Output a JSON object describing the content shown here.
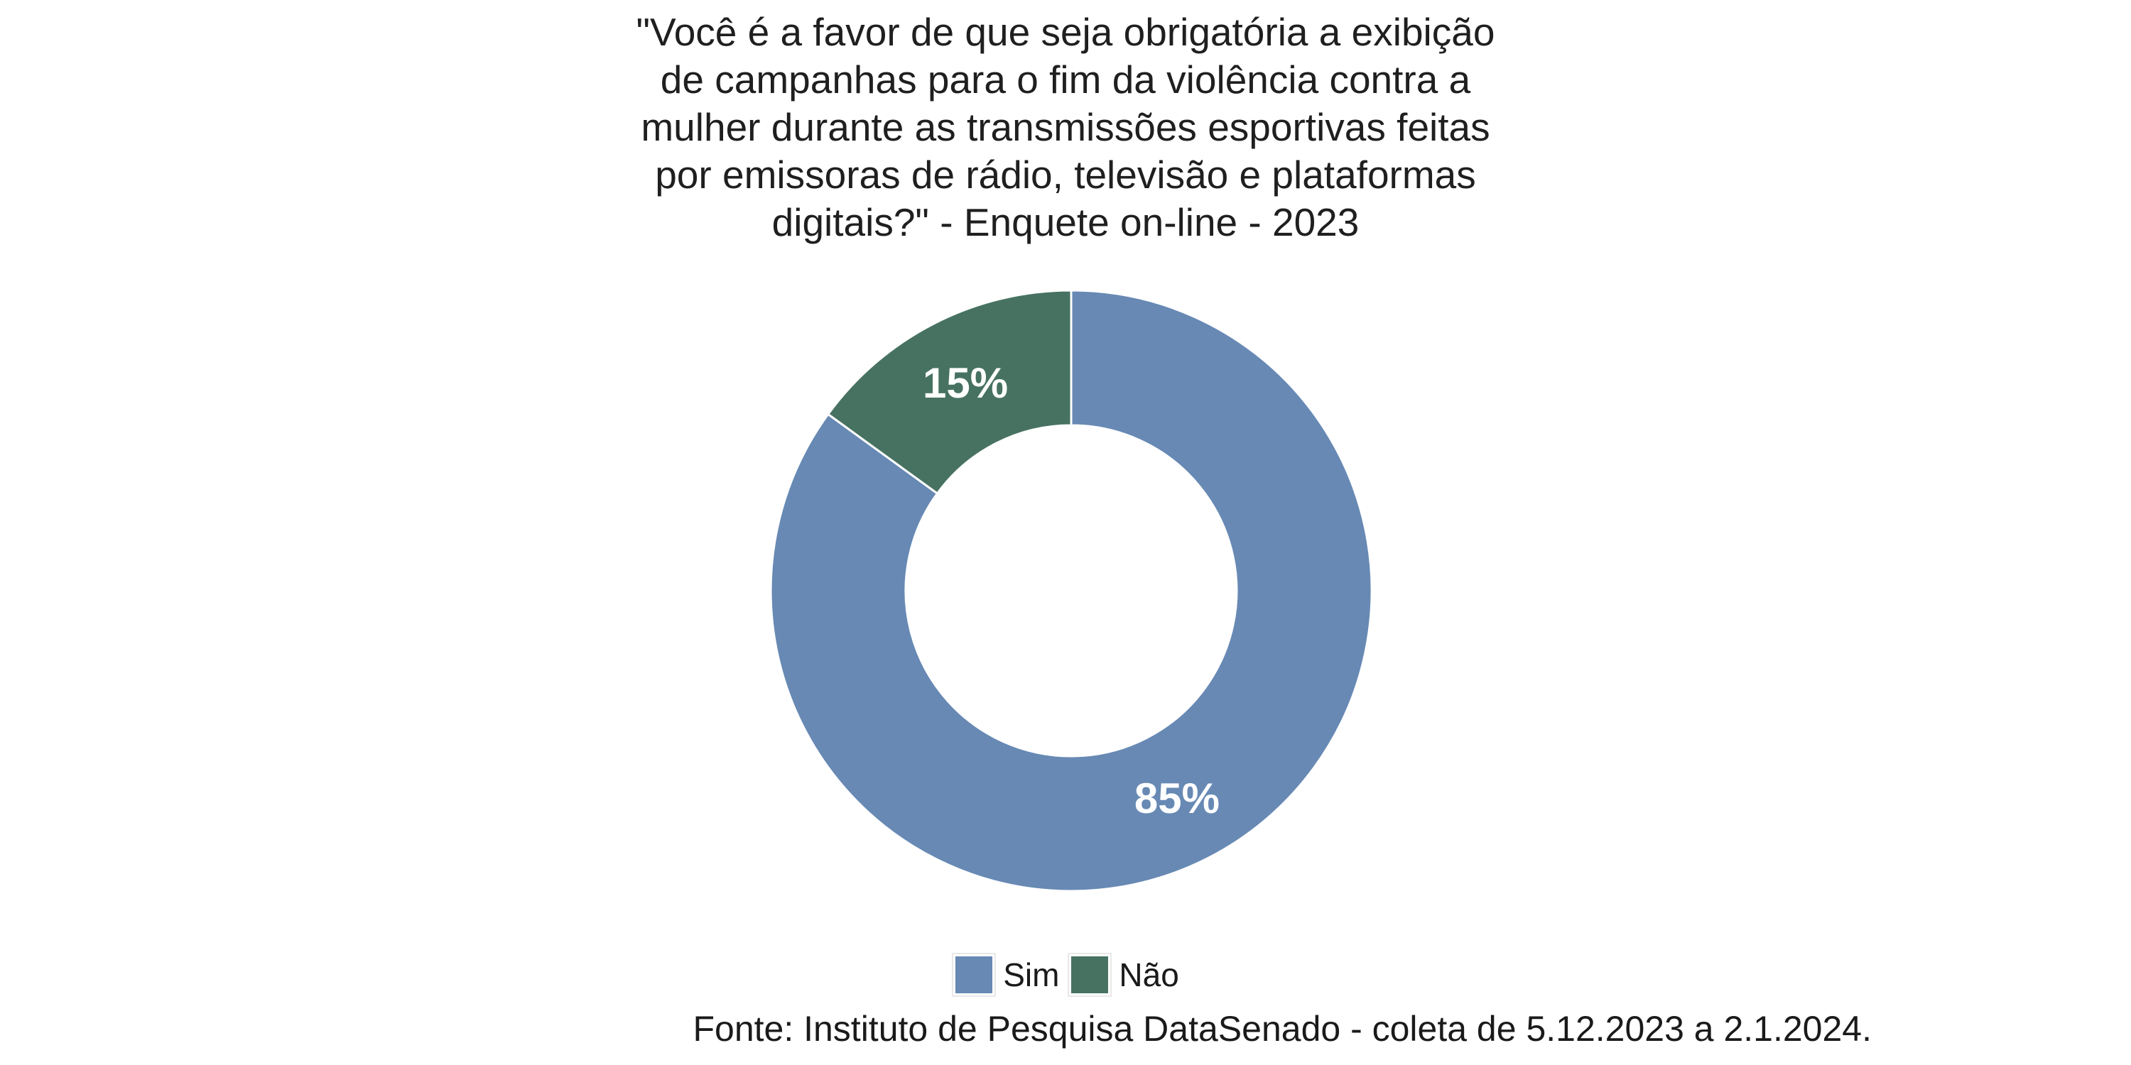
{
  "page": {
    "background": "#ffffff"
  },
  "title": {
    "full": "\"Você é a favor de que seja obrigatória a exibição de campanhas para o fim da violência contra a mulher durante as transmissões esportivas feitas por emissoras de rádio, televisão e plataformas digitais?\" - Enquete on-line - 2023",
    "lines": [
      "\"Você é a favor de que seja obrigatória a exibição",
      "de campanhas para o fim da violência contra a",
      "mulher durante as transmissões esportivas feitas",
      "por emissoras de rádio, televisão e plataformas",
      "digitais?\" - Enquete on-line - 2023"
    ]
  },
  "chart_data": {
    "type": "pie",
    "subtype": "donut",
    "title": "\"Você é a favor de que seja obrigatória a exibição de campanhas para o fim da violência contra a mulher durante as transmissões esportivas feitas por emissoras de rádio, televisão e plataformas digitais?\" - Enquete on-line - 2023",
    "categories": [
      "Sim",
      "Não"
    ],
    "values": [
      85,
      15
    ],
    "value_labels": [
      "85%",
      "15%"
    ],
    "colors": [
      "#6789B4",
      "#477261"
    ],
    "label_color": "#ffffff",
    "start_angle_deg": 0,
    "direction": "clockwise",
    "donut_hole_ratio": 0.55,
    "legend_position": "bottom",
    "caption": "Fonte: Instituto de Pesquisa DataSenado - coleta de 5.12.2023 a 2.1.2024."
  },
  "legend": {
    "items": [
      {
        "label": "Sim",
        "color": "#6789B4"
      },
      {
        "label": "Não",
        "color": "#477261"
      }
    ]
  },
  "footer": {
    "source": "Fonte: Instituto de Pesquisa DataSenado - coleta de 5.12.2023 a 2.1.2024."
  }
}
